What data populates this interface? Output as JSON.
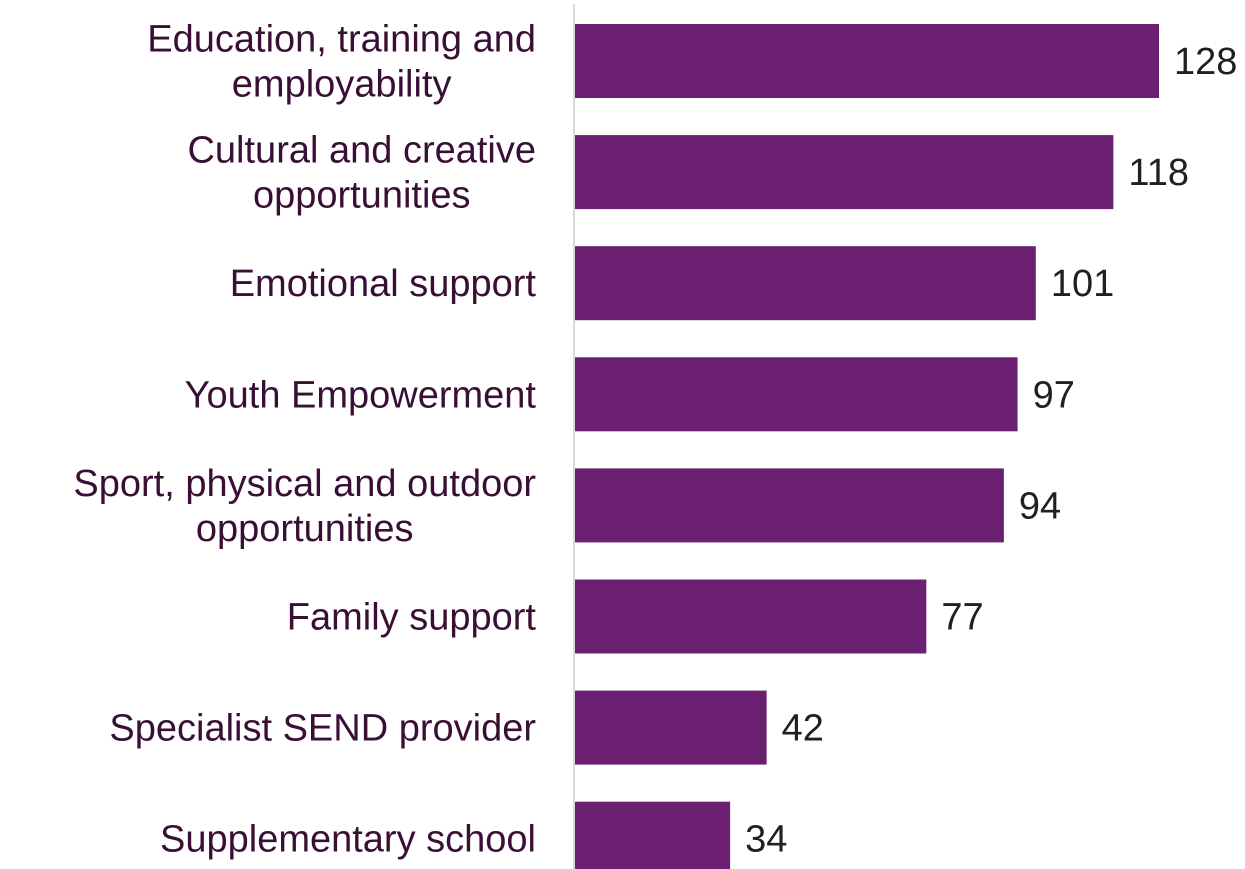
{
  "chart_data": {
    "type": "bar",
    "orientation": "horizontal",
    "categories": [
      [
        "Education, training and",
        "employability"
      ],
      [
        "Cultural and creative",
        "opportunities"
      ],
      [
        "Emotional support"
      ],
      [
        "Youth Empowerment"
      ],
      [
        "Sport, physical and outdoor",
        "opportunities"
      ],
      [
        "Family support"
      ],
      [
        "Specialist SEND provider"
      ],
      [
        "Supplementary school"
      ]
    ],
    "values": [
      128,
      118,
      101,
      97,
      94,
      77,
      42,
      34
    ],
    "data_labels": [
      "128",
      "118",
      "101",
      "97",
      "94",
      "77",
      "42",
      "34"
    ],
    "title": "",
    "xlabel": "",
    "ylabel": "",
    "xlim": [
      0,
      128
    ],
    "grid": false,
    "legend": "none",
    "colors": {
      "bar": "#6a1f71",
      "axis": "#d9d9d9",
      "category_text": "#3a0f36",
      "value_text": "#231f20"
    }
  }
}
